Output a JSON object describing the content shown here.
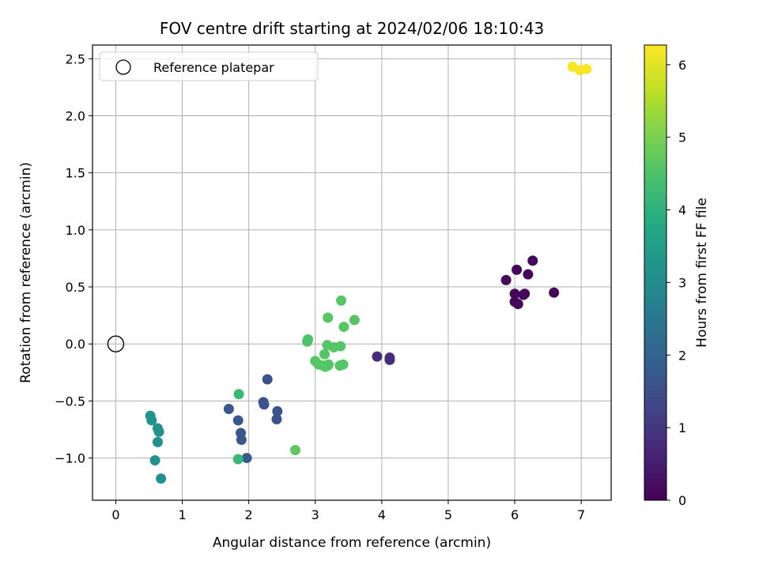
{
  "chart_data": {
    "type": "scatter",
    "title": "FOV centre drift starting at 2024/02/06 18:10:43",
    "xlabel": "Angular distance from reference (arcmin)",
    "ylabel": "Rotation from reference (arcmin)",
    "xlim": [
      -0.35,
      7.45
    ],
    "ylim": [
      -1.37,
      2.62
    ],
    "x_ticks": [
      0,
      1,
      2,
      3,
      4,
      5,
      6,
      7
    ],
    "x_tick_labels": [
      "0",
      "1",
      "2",
      "3",
      "4",
      "5",
      "6",
      "7"
    ],
    "y_ticks": [
      -1.0,
      -0.5,
      0.0,
      0.5,
      1.0,
      1.5,
      2.0,
      2.5
    ],
    "y_tick_labels": [
      "−1.0",
      "−0.5",
      "0.0",
      "0.5",
      "1.0",
      "1.5",
      "2.0",
      "2.5"
    ],
    "grid": true,
    "legend": {
      "position": "top-left",
      "entries": [
        "Reference platepar"
      ]
    },
    "reference_point": {
      "name": "Reference platepar",
      "x": 0,
      "y": 0
    },
    "colorbar": {
      "label": "Hours from first FF file",
      "colormap": "viridis",
      "range": [
        0,
        6.27
      ],
      "ticks": [
        0,
        1,
        2,
        3,
        4,
        5,
        6
      ],
      "tick_labels": [
        "0",
        "1",
        "2",
        "3",
        "4",
        "5",
        "6"
      ]
    },
    "points": [
      {
        "x": 5.87,
        "y": 0.56,
        "h": 0.1
      },
      {
        "x": 6.03,
        "y": 0.65,
        "h": 0.1
      },
      {
        "x": 6.27,
        "y": 0.73,
        "h": 0.15
      },
      {
        "x": 6.2,
        "y": 0.61,
        "h": 0.1
      },
      {
        "x": 6.0,
        "y": 0.44,
        "h": 0.1
      },
      {
        "x": 6.13,
        "y": 0.43,
        "h": 0.1
      },
      {
        "x": 6.15,
        "y": 0.44,
        "h": 0.1
      },
      {
        "x": 6.59,
        "y": 0.45,
        "h": 0.1
      },
      {
        "x": 6.0,
        "y": 0.37,
        "h": 0.1
      },
      {
        "x": 6.05,
        "y": 0.35,
        "h": 0.1
      },
      {
        "x": 3.93,
        "y": -0.11,
        "h": 0.8
      },
      {
        "x": 4.12,
        "y": -0.12,
        "h": 0.8
      },
      {
        "x": 4.12,
        "y": -0.14,
        "h": 0.8
      },
      {
        "x": 2.28,
        "y": -0.31,
        "h": 1.6
      },
      {
        "x": 2.22,
        "y": -0.51,
        "h": 1.6
      },
      {
        "x": 2.23,
        "y": -0.53,
        "h": 1.6
      },
      {
        "x": 1.7,
        "y": -0.57,
        "h": 1.7
      },
      {
        "x": 2.43,
        "y": -0.59,
        "h": 1.6
      },
      {
        "x": 2.42,
        "y": -0.66,
        "h": 1.6
      },
      {
        "x": 1.84,
        "y": -0.67,
        "h": 1.7
      },
      {
        "x": 1.88,
        "y": -0.78,
        "h": 1.7
      },
      {
        "x": 1.89,
        "y": -0.84,
        "h": 1.7
      },
      {
        "x": 1.97,
        "y": -1.0,
        "h": 1.8
      },
      {
        "x": 0.52,
        "y": -0.63,
        "h": 3.2
      },
      {
        "x": 0.54,
        "y": -0.67,
        "h": 3.2
      },
      {
        "x": 0.63,
        "y": -0.74,
        "h": 3.1
      },
      {
        "x": 0.65,
        "y": -0.77,
        "h": 3.1
      },
      {
        "x": 0.63,
        "y": -0.86,
        "h": 3.1
      },
      {
        "x": 0.59,
        "y": -1.02,
        "h": 3.2
      },
      {
        "x": 0.68,
        "y": -1.18,
        "h": 3.1
      },
      {
        "x": 1.85,
        "y": -0.44,
        "h": 4.2
      },
      {
        "x": 1.84,
        "y": -1.01,
        "h": 4.2
      },
      {
        "x": 2.7,
        "y": -0.93,
        "h": 4.7
      },
      {
        "x": 3.39,
        "y": 0.38,
        "h": 4.6
      },
      {
        "x": 3.19,
        "y": 0.23,
        "h": 4.6
      },
      {
        "x": 3.59,
        "y": 0.21,
        "h": 4.6
      },
      {
        "x": 3.43,
        "y": 0.15,
        "h": 4.6
      },
      {
        "x": 2.89,
        "y": 0.04,
        "h": 4.5
      },
      {
        "x": 2.88,
        "y": 0.02,
        "h": 4.5
      },
      {
        "x": 3.18,
        "y": -0.01,
        "h": 4.6
      },
      {
        "x": 3.28,
        "y": -0.03,
        "h": 4.6
      },
      {
        "x": 3.38,
        "y": -0.02,
        "h": 4.6
      },
      {
        "x": 3.14,
        "y": -0.09,
        "h": 4.6
      },
      {
        "x": 3.0,
        "y": -0.15,
        "h": 4.6
      },
      {
        "x": 3.05,
        "y": -0.18,
        "h": 4.6
      },
      {
        "x": 3.12,
        "y": -0.19,
        "h": 4.6
      },
      {
        "x": 3.2,
        "y": -0.18,
        "h": 4.6
      },
      {
        "x": 3.15,
        "y": -0.2,
        "h": 4.6
      },
      {
        "x": 3.19,
        "y": -0.19,
        "h": 4.6
      },
      {
        "x": 3.37,
        "y": -0.19,
        "h": 4.6
      },
      {
        "x": 3.42,
        "y": -0.18,
        "h": 4.6
      },
      {
        "x": 6.87,
        "y": 2.43,
        "h": 6.2
      },
      {
        "x": 6.98,
        "y": 2.4,
        "h": 6.2
      },
      {
        "x": 7.08,
        "y": 2.41,
        "h": 6.2
      }
    ]
  }
}
